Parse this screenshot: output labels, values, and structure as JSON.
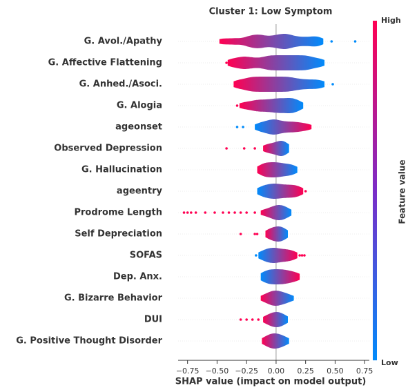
{
  "chart_data": {
    "type": "violin",
    "title": "Cluster 1: Low Symptom",
    "x_label": "SHAP value (impact on model output)",
    "colorbar": {
      "label": "Feature value",
      "high": "High",
      "low": "Low",
      "colors": [
        "#ff0052",
        "#7b2cc7",
        "#008bfb"
      ]
    },
    "xlim": [
      -0.83,
      0.79
    ],
    "xticks": [
      {
        "value": -0.75,
        "label": "−0.75"
      },
      {
        "value": -0.5,
        "label": "−0.50"
      },
      {
        "value": -0.25,
        "label": "−0.25"
      },
      {
        "value": 0,
        "label": "0.00"
      },
      0.25,
      {
        "value": 0.5,
        "label": "0.50"
      },
      {
        "value": 0.75,
        "label": "0.75"
      }
    ],
    "series": [
      {
        "name": "G. Avol./Apathy",
        "values": [
          -0.45,
          -0.35,
          -0.25,
          -0.2,
          -0.15,
          -0.12,
          -0.05,
          0.0,
          0.05,
          0.08,
          0.12,
          0.18,
          0.25,
          0.32,
          0.37
        ],
        "outliers": [
          0.47,
          0.67
        ],
        "colors": [
          "#ff0052",
          "#008bfb"
        ]
      },
      {
        "name": "G. Affective Flattening",
        "values": [
          -0.38,
          -0.3,
          -0.25,
          -0.18,
          -0.1,
          -0.05,
          0.0,
          0.05,
          0.1,
          0.15,
          0.2,
          0.25,
          0.3,
          0.38
        ],
        "outliers": [
          -0.42
        ],
        "colors": [
          "#ff0052",
          "#008bfb"
        ]
      },
      {
        "name": "G. Anhed./Asoci.",
        "values": [
          -0.33,
          -0.25,
          -0.2,
          -0.15,
          -0.1,
          -0.05,
          0.0,
          0.05,
          0.1,
          0.15,
          0.22,
          0.3,
          0.38
        ],
        "outliers": [
          0.48
        ],
        "colors": [
          "#ff0052",
          "#008bfb"
        ]
      },
      {
        "name": "G. Alogia",
        "values": [
          -0.28,
          -0.2,
          -0.15,
          -0.1,
          -0.05,
          0.0,
          0.03,
          0.08,
          0.12,
          0.15,
          0.2
        ],
        "outliers": [
          -0.33,
          -0.3
        ],
        "colors": [
          "#ff0052",
          "#008bfb"
        ]
      },
      {
        "name": "ageonset",
        "values": [
          -0.15,
          -0.1,
          -0.05,
          -0.02,
          0.0,
          0.05,
          0.1,
          0.15,
          0.2,
          0.27
        ],
        "outliers": [
          -0.33,
          -0.28
        ],
        "colors": [
          "#008bfb",
          "#ff0052"
        ]
      },
      {
        "name": "Observed Depression",
        "values": [
          -0.08,
          -0.05,
          0.02,
          0.04,
          0.06,
          0.08
        ],
        "outliers": [
          -0.42,
          -0.27,
          -0.18
        ],
        "colors": [
          "#ff0052",
          "#008bfb"
        ]
      },
      {
        "name": "G. Hallucination",
        "values": [
          -0.13,
          -0.1,
          -0.07,
          -0.03,
          0.0,
          0.03,
          0.07,
          0.12,
          0.15
        ],
        "outliers": [],
        "colors": [
          "#ff0052",
          "#008bfb"
        ]
      },
      {
        "name": "ageentry",
        "values": [
          -0.13,
          -0.08,
          -0.03,
          0.0,
          0.05,
          0.1,
          0.15,
          0.2
        ],
        "outliers": [
          0.25
        ],
        "colors": [
          "#008bfb",
          "#ff0052"
        ]
      },
      {
        "name": "Prodrome Length",
        "values": [
          -0.1,
          -0.03,
          0.0,
          0.03,
          0.06,
          0.1
        ],
        "outliers": [
          -0.78,
          -0.75,
          -0.72,
          -0.68,
          -0.6,
          -0.52,
          -0.45,
          -0.4,
          -0.35,
          -0.3,
          -0.25,
          -0.18
        ],
        "colors": [
          "#ff0052",
          "#008bfb"
        ]
      },
      {
        "name": "Self Depreciation",
        "values": [
          -0.06,
          -0.03,
          0.02,
          0.04,
          0.07
        ],
        "outliers": [
          -0.3,
          -0.18,
          -0.16
        ],
        "colors": [
          "#ff0052",
          "#008bfb"
        ]
      },
      {
        "name": "SOFAS",
        "values": [
          -0.12,
          -0.07,
          -0.03,
          0.0,
          0.05,
          0.1,
          0.15
        ],
        "outliers": [
          -0.17,
          0.2,
          0.22,
          0.24
        ],
        "colors": [
          "#008bfb",
          "#ff0052"
        ]
      },
      {
        "name": "Dep. Anx.",
        "values": [
          -0.1,
          -0.05,
          0.0,
          0.05,
          0.1,
          0.17
        ],
        "outliers": [],
        "colors": [
          "#008bfb",
          "#ff0052"
        ]
      },
      {
        "name": "G. Bizarre Behavior",
        "values": [
          -0.1,
          -0.05,
          -0.02,
          0.0,
          0.03,
          0.07,
          0.12
        ],
        "outliers": [],
        "colors": [
          "#ff0052",
          "#008bfb"
        ]
      },
      {
        "name": "DUI",
        "values": [
          -0.08,
          -0.03,
          0.0,
          0.03,
          0.07
        ],
        "outliers": [
          -0.3,
          -0.25,
          -0.2,
          -0.15
        ],
        "colors": [
          "#ff0052",
          "#008bfb"
        ]
      },
      {
        "name": "G. Positive Thought Disorder",
        "values": [
          -0.09,
          -0.05,
          -0.02,
          0.0,
          0.04,
          0.08
        ],
        "outliers": [],
        "colors": [
          "#ff0052",
          "#008bfb"
        ]
      }
    ]
  }
}
